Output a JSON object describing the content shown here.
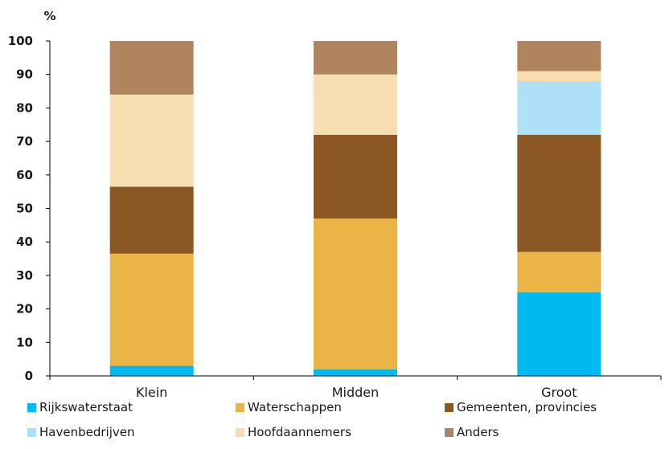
{
  "chart_data": {
    "type": "bar",
    "stacked": true,
    "categories": [
      "Klein",
      "Midden",
      "Groot"
    ],
    "series": [
      {
        "name": "Rijkswaterstaat",
        "color": "#00b9ef",
        "values": [
          3,
          2,
          25
        ]
      },
      {
        "name": "Waterschappen",
        "color": "#ebb447",
        "values": [
          33.5,
          45,
          12
        ]
      },
      {
        "name": "Gemeenten, provincies",
        "color": "#8b5722",
        "values": [
          20,
          25,
          35
        ]
      },
      {
        "name": "Havenbedrijven",
        "color": "#aee0f8",
        "values": [
          0,
          0,
          16
        ]
      },
      {
        "name": "Hoofdaannemers",
        "color": "#f7deb1",
        "values": [
          27.5,
          18,
          3
        ]
      },
      {
        "name": "Anders",
        "color": "#b0845c",
        "values": [
          16,
          10,
          9
        ]
      }
    ],
    "ylabel": "%",
    "ylim": [
      0,
      100
    ],
    "yticks": [
      0,
      10,
      20,
      30,
      40,
      50,
      60,
      70,
      80,
      90,
      100
    ],
    "grid": false,
    "legend_placement": "bottom"
  }
}
